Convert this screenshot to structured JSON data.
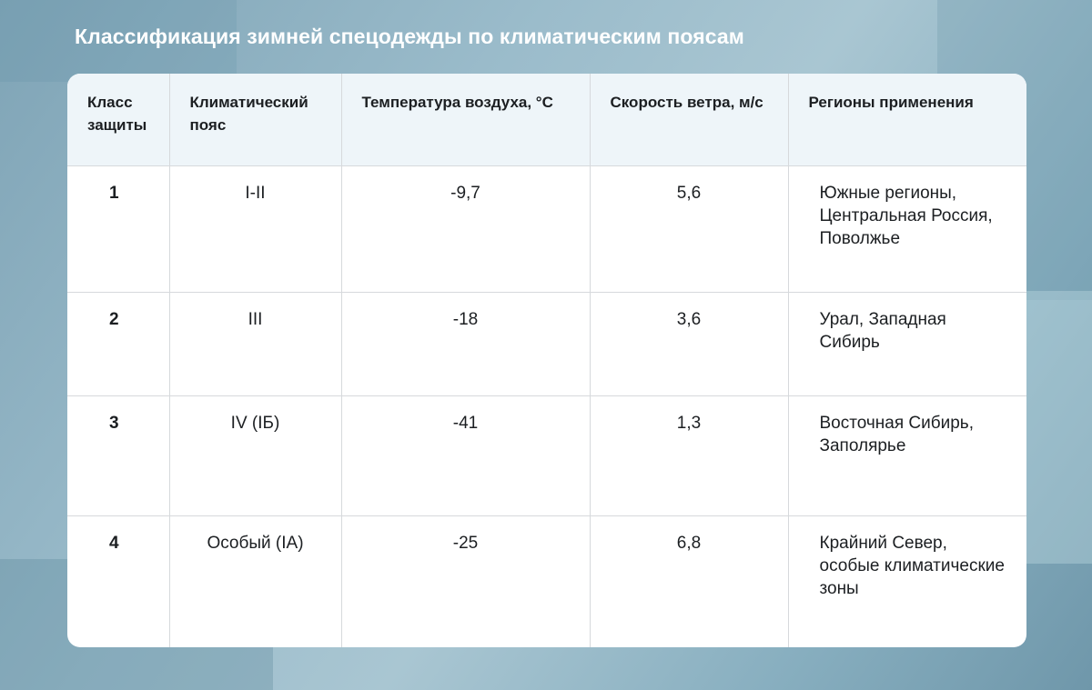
{
  "title": "Классификация зимней спецодежды по климатическим поясам",
  "table": {
    "headers": [
      "Класс защиты",
      "Климатический пояс",
      "Температура воздуха, °С",
      "Скорость ветра, м/с",
      "Регионы применения"
    ],
    "rows": [
      {
        "class": "1",
        "zone": "I-II",
        "temp": "-9,7",
        "wind": "5,6",
        "regions": "Южные регионы, Центральная Россия, Поволжье"
      },
      {
        "class": "2",
        "zone": "III",
        "temp": "-18",
        "wind": "3,6",
        "regions": "Урал, Западная Сибирь"
      },
      {
        "class": "3",
        "zone": "IV (IБ)",
        "temp": "-41",
        "wind": "1,3",
        "regions": "Восточная Сибирь, Заполярье"
      },
      {
        "class": "4",
        "zone": "Особый (IA)",
        "temp": "-25",
        "wind": "6,8",
        "regions": "Крайний Север, особые климатические зоны"
      }
    ]
  }
}
